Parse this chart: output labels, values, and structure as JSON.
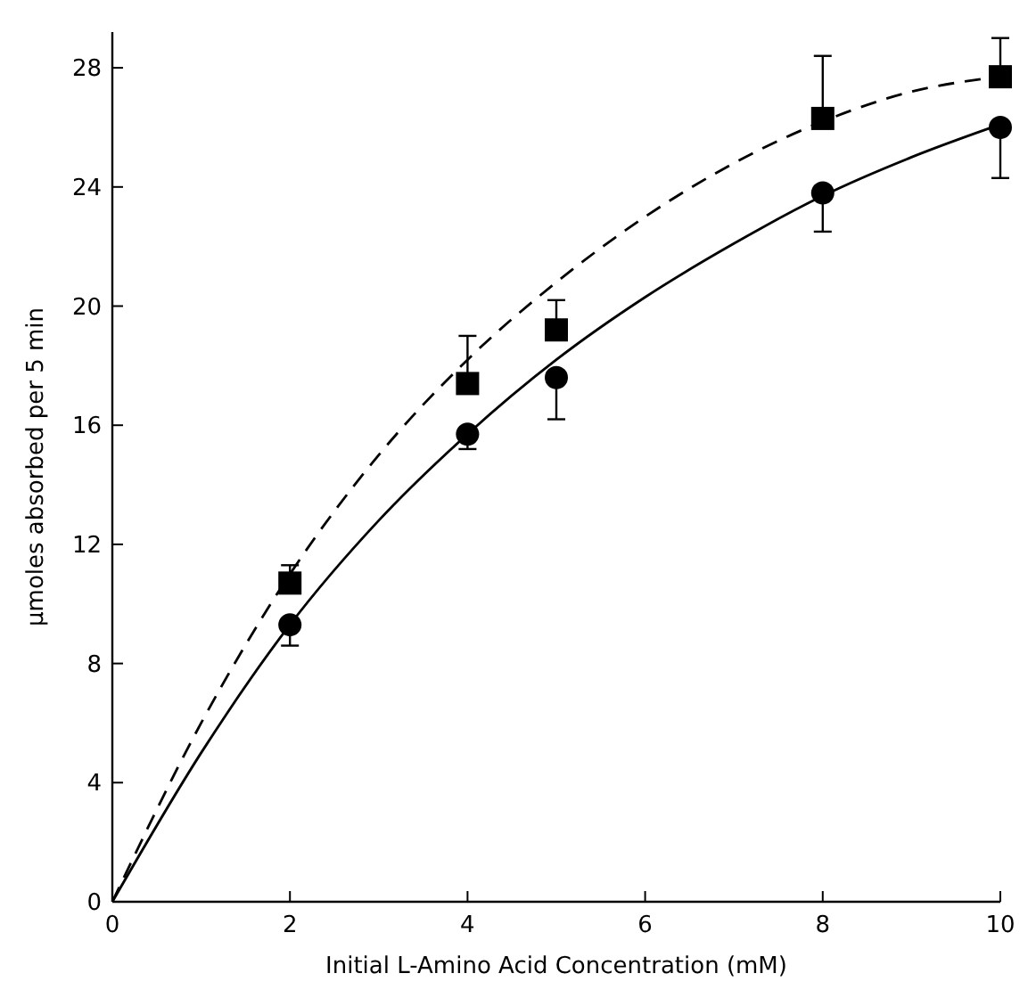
{
  "chart_data": {
    "type": "scatter",
    "xlabel": "Initial L-Amino Acid Concentration (mM)",
    "ylabel": "μmoles absorbed per 5 min",
    "xlim": [
      0,
      10
    ],
    "xticks": [
      0,
      2,
      4,
      6,
      8,
      10
    ],
    "ylim": [
      0,
      29.2
    ],
    "yticks": [
      0,
      4,
      8,
      12,
      16,
      20,
      24,
      28
    ],
    "grid": false,
    "series": [
      {
        "type": "line",
        "color": "#000000",
        "marker": "none",
        "line_style": "dashed",
        "x": [
          0,
          1,
          2,
          3,
          4,
          5,
          6,
          7,
          8,
          9,
          10
        ],
        "values": [
          0,
          6.0,
          11.0,
          15.0,
          18.2,
          20.8,
          23.0,
          24.8,
          26.2,
          27.2,
          27.7
        ]
      },
      {
        "type": "line",
        "color": "#000000",
        "marker": "none",
        "line_style": "solid",
        "x": [
          0,
          1,
          2,
          3,
          4,
          5,
          6,
          7,
          8,
          9,
          10
        ],
        "values": [
          0,
          5.0,
          9.3,
          12.8,
          15.7,
          18.2,
          20.3,
          22.1,
          23.7,
          25.0,
          26.1
        ]
      },
      {
        "color": "#000000",
        "marker": "square",
        "x": [
          2,
          4,
          5,
          8,
          10
        ],
        "values": [
          10.7,
          17.4,
          19.2,
          26.3,
          27.7
        ],
        "errors": [
          [
            10.7,
            11.3
          ],
          [
            17.4,
            19.0
          ],
          [
            19.2,
            20.2
          ],
          [
            26.3,
            28.4
          ],
          [
            27.7,
            29.0
          ]
        ]
      },
      {
        "color": "#000000",
        "marker": "circle",
        "x": [
          2,
          4,
          5,
          8,
          10
        ],
        "values": [
          9.3,
          15.7,
          17.6,
          23.8,
          26.0
        ],
        "errors": [
          [
            8.6,
            9.3
          ],
          [
            15.2,
            15.7
          ],
          [
            16.2,
            17.6
          ],
          [
            22.5,
            23.8
          ],
          [
            24.3,
            26.0
          ]
        ]
      }
    ]
  }
}
